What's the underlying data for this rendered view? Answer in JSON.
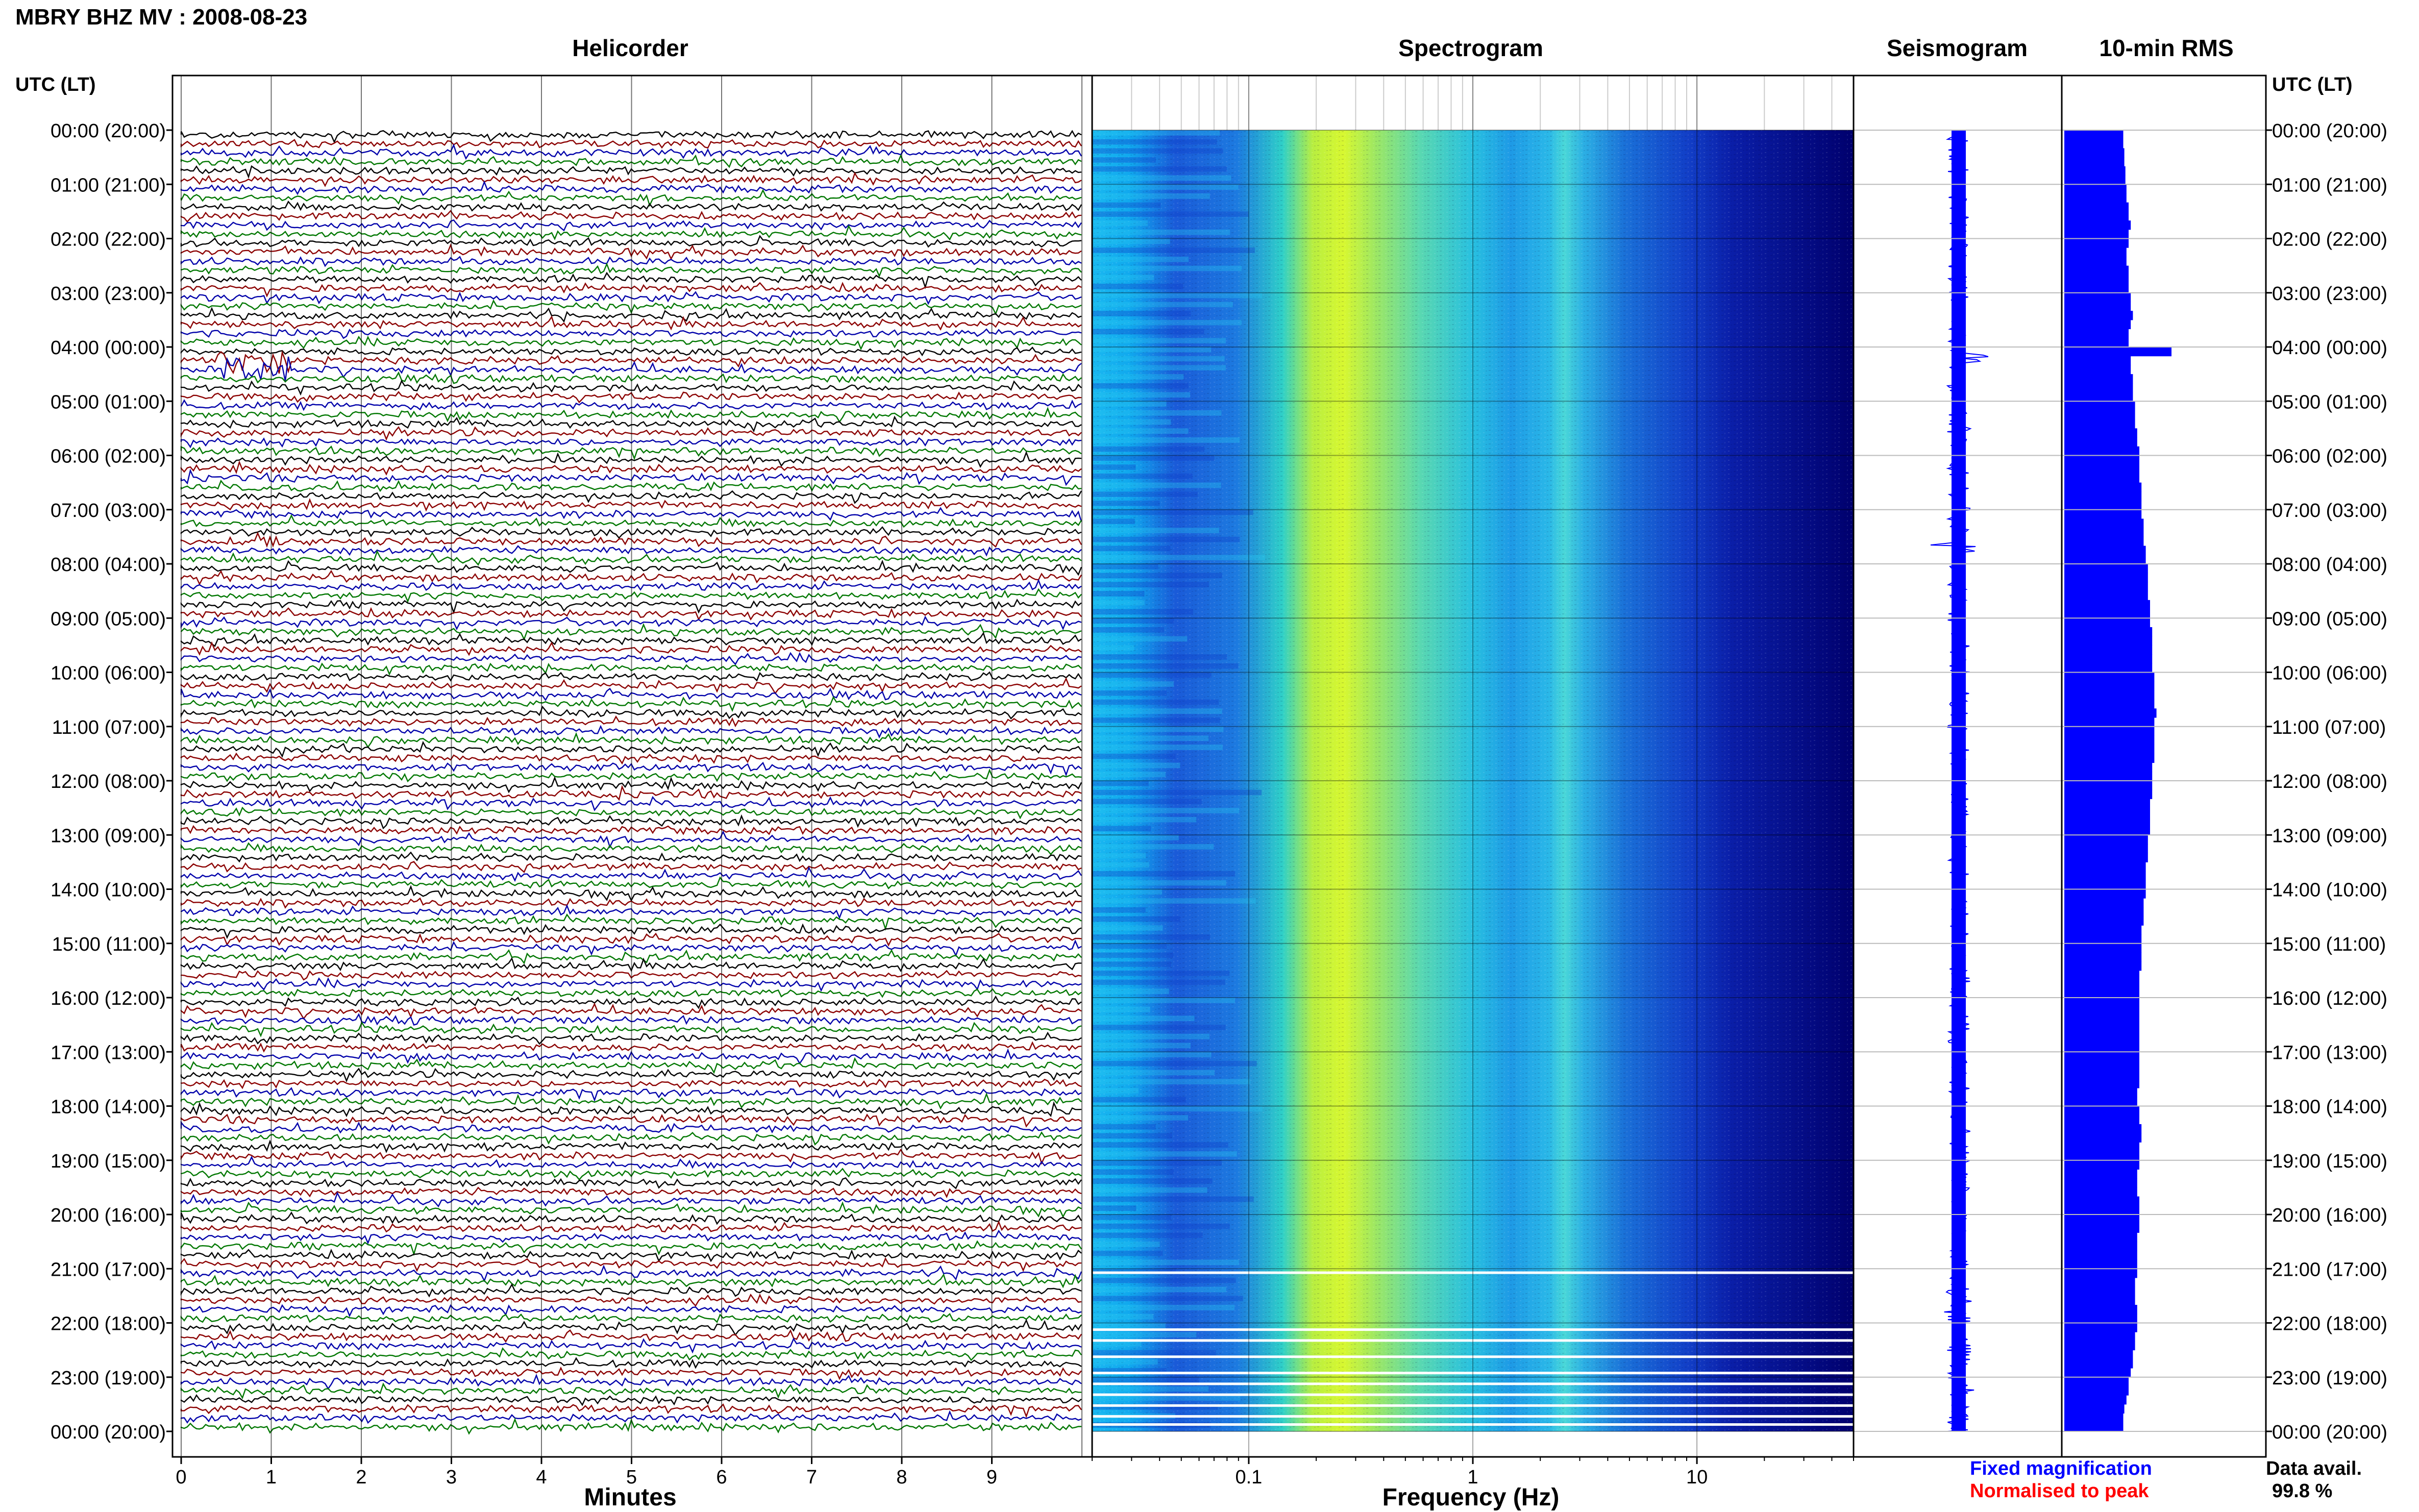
{
  "title": "MBRY BHZ MV : 2008-08-23",
  "colors": {
    "trace_cycle": [
      "#000000",
      "#8b0000",
      "#0000aa",
      "#007700"
    ],
    "spectrogram_low": "#00008b",
    "spectrogram_high": "#e6ff20",
    "seismogram": "#0000ff",
    "rms": "#0000ff",
    "legend_fixed": "#0000ff",
    "legend_norm": "#ff0000"
  },
  "panels": {
    "helicorder": "Helicorder",
    "spectrogram": "Spectrogram",
    "seismogram": "Seismogram",
    "rms": "10-min RMS"
  },
  "utc_label_left": "UTC (LT)",
  "utc_label_right": "UTC (LT)",
  "time_labels": [
    "00:00 (20:00)",
    "01:00 (21:00)",
    "02:00 (22:00)",
    "03:00 (23:00)",
    "04:00 (00:00)",
    "05:00 (01:00)",
    "06:00 (02:00)",
    "07:00 (03:00)",
    "08:00 (04:00)",
    "09:00 (05:00)",
    "10:00 (06:00)",
    "11:00 (07:00)",
    "12:00 (08:00)",
    "13:00 (09:00)",
    "14:00 (10:00)",
    "15:00 (11:00)",
    "16:00 (12:00)",
    "17:00 (13:00)",
    "18:00 (14:00)",
    "19:00 (15:00)",
    "20:00 (16:00)",
    "21:00 (17:00)",
    "22:00 (18:00)",
    "23:00 (19:00)",
    "00:00 (20:00)"
  ],
  "chart_data": [
    {
      "type": "line",
      "name": "Helicorder",
      "title": "Helicorder",
      "xlabel": "Minutes",
      "x_ticks": [
        "0",
        "1",
        "2",
        "3",
        "4",
        "5",
        "6",
        "7",
        "8",
        "9"
      ],
      "xlim": [
        0,
        10
      ],
      "rows_per_hour": 6,
      "hours": 24,
      "events": [
        {
          "hour": 4.17,
          "minute_start": 0.4,
          "minute_end": 1.2,
          "amplitude": "large"
        },
        {
          "hour": 7.5,
          "minute_start": 0.8,
          "minute_end": 1.1,
          "amplitude": "medium"
        }
      ]
    },
    {
      "type": "heatmap",
      "name": "Spectrogram",
      "title": "Spectrogram",
      "xlabel": "Frequency (Hz)",
      "x_scale": "log",
      "xlim": [
        0.02,
        50
      ],
      "x_ticks": [
        "0.1",
        "1",
        "10"
      ],
      "peak_band_hz": [
        0.2,
        0.6
      ],
      "secondary_band_hz": [
        3,
        4
      ],
      "data_gaps_hour": [
        21.05,
        22.1,
        22.3,
        22.6,
        22.9,
        23.1,
        23.3,
        23.5,
        23.7,
        23.85
      ]
    },
    {
      "type": "line",
      "name": "Seismogram",
      "title": "Seismogram",
      "event_hours": [
        4.2,
        7.7
      ]
    },
    {
      "type": "bar",
      "name": "10-min RMS",
      "title": "10-min RMS",
      "orientation": "horizontal",
      "interval_minutes": 10,
      "values": [
        0.55,
        0.55,
        0.56,
        0.56,
        0.57,
        0.57,
        0.58,
        0.58,
        0.6,
        0.6,
        0.62,
        0.6,
        0.6,
        0.58,
        0.58,
        0.6,
        0.6,
        0.6,
        0.62,
        0.62,
        0.64,
        0.62,
        0.6,
        0.6,
        1.0,
        0.62,
        0.62,
        0.64,
        0.64,
        0.64,
        0.66,
        0.66,
        0.66,
        0.68,
        0.68,
        0.7,
        0.7,
        0.7,
        0.7,
        0.72,
        0.72,
        0.72,
        0.72,
        0.74,
        0.74,
        0.74,
        0.76,
        0.76,
        0.78,
        0.78,
        0.78,
        0.78,
        0.8,
        0.8,
        0.8,
        0.82,
        0.82,
        0.82,
        0.82,
        0.82,
        0.84,
        0.84,
        0.84,
        0.84,
        0.86,
        0.84,
        0.84,
        0.84,
        0.84,
        0.84,
        0.82,
        0.82,
        0.82,
        0.82,
        0.8,
        0.8,
        0.8,
        0.8,
        0.78,
        0.78,
        0.78,
        0.76,
        0.76,
        0.76,
        0.76,
        0.74,
        0.74,
        0.74,
        0.72,
        0.72,
        0.72,
        0.72,
        0.72,
        0.7,
        0.7,
        0.7,
        0.7,
        0.7,
        0.7,
        0.7,
        0.7,
        0.7,
        0.7,
        0.7,
        0.7,
        0.7,
        0.68,
        0.68,
        0.7,
        0.7,
        0.72,
        0.72,
        0.7,
        0.7,
        0.7,
        0.68,
        0.68,
        0.68,
        0.7,
        0.7,
        0.7,
        0.7,
        0.68,
        0.68,
        0.68,
        0.68,
        0.68,
        0.66,
        0.66,
        0.66,
        0.68,
        0.68,
        0.68,
        0.66,
        0.66,
        0.64,
        0.64,
        0.62,
        0.6,
        0.6,
        0.58,
        0.56,
        0.55,
        0.55
      ]
    }
  ],
  "legend": {
    "fixed": "Fixed magnification",
    "normalised": "Normalised to peak"
  },
  "data_avail": {
    "label": "Data avail.",
    "value": "99.8 %"
  }
}
